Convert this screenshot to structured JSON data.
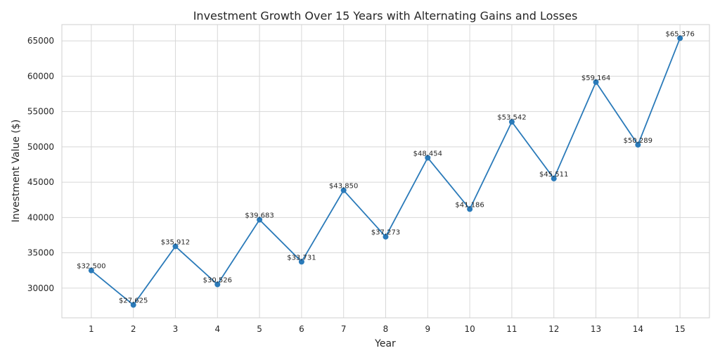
{
  "chart_data": {
    "type": "line",
    "title": "Investment Growth Over 15 Years with Alternating Gains and Losses",
    "xlabel": "Year",
    "ylabel": "Investment Value ($)",
    "x": [
      1,
      2,
      3,
      4,
      5,
      6,
      7,
      8,
      9,
      10,
      11,
      12,
      13,
      14,
      15
    ],
    "y": [
      32500,
      27625,
      35912,
      30526,
      39683,
      33731,
      43850,
      37273,
      48454,
      41186,
      53542,
      45511,
      59164,
      50289,
      65376
    ],
    "data_labels": [
      "$32,500",
      "$27,625",
      "$35,912",
      "$30,526",
      "$39,683",
      "$33,731",
      "$43,850",
      "$37,273",
      "$48,454",
      "$41,186",
      "$53,542",
      "$45,511",
      "$59,164",
      "$50,289",
      "$65,376"
    ],
    "x_ticks": [
      "1",
      "2",
      "3",
      "4",
      "5",
      "6",
      "7",
      "8",
      "9",
      "10",
      "11",
      "12",
      "13",
      "14",
      "15"
    ],
    "y_ticks": [
      30000,
      35000,
      40000,
      45000,
      50000,
      55000,
      60000,
      65000
    ],
    "y_tick_labels": [
      "30000",
      "35000",
      "40000",
      "45000",
      "50000",
      "55000",
      "60000",
      "65000"
    ],
    "xlim": [
      0.3,
      15.7
    ],
    "ylim": [
      25800,
      67300
    ],
    "grid": true,
    "line_color": "#2a7ab9",
    "marker": "circle"
  }
}
